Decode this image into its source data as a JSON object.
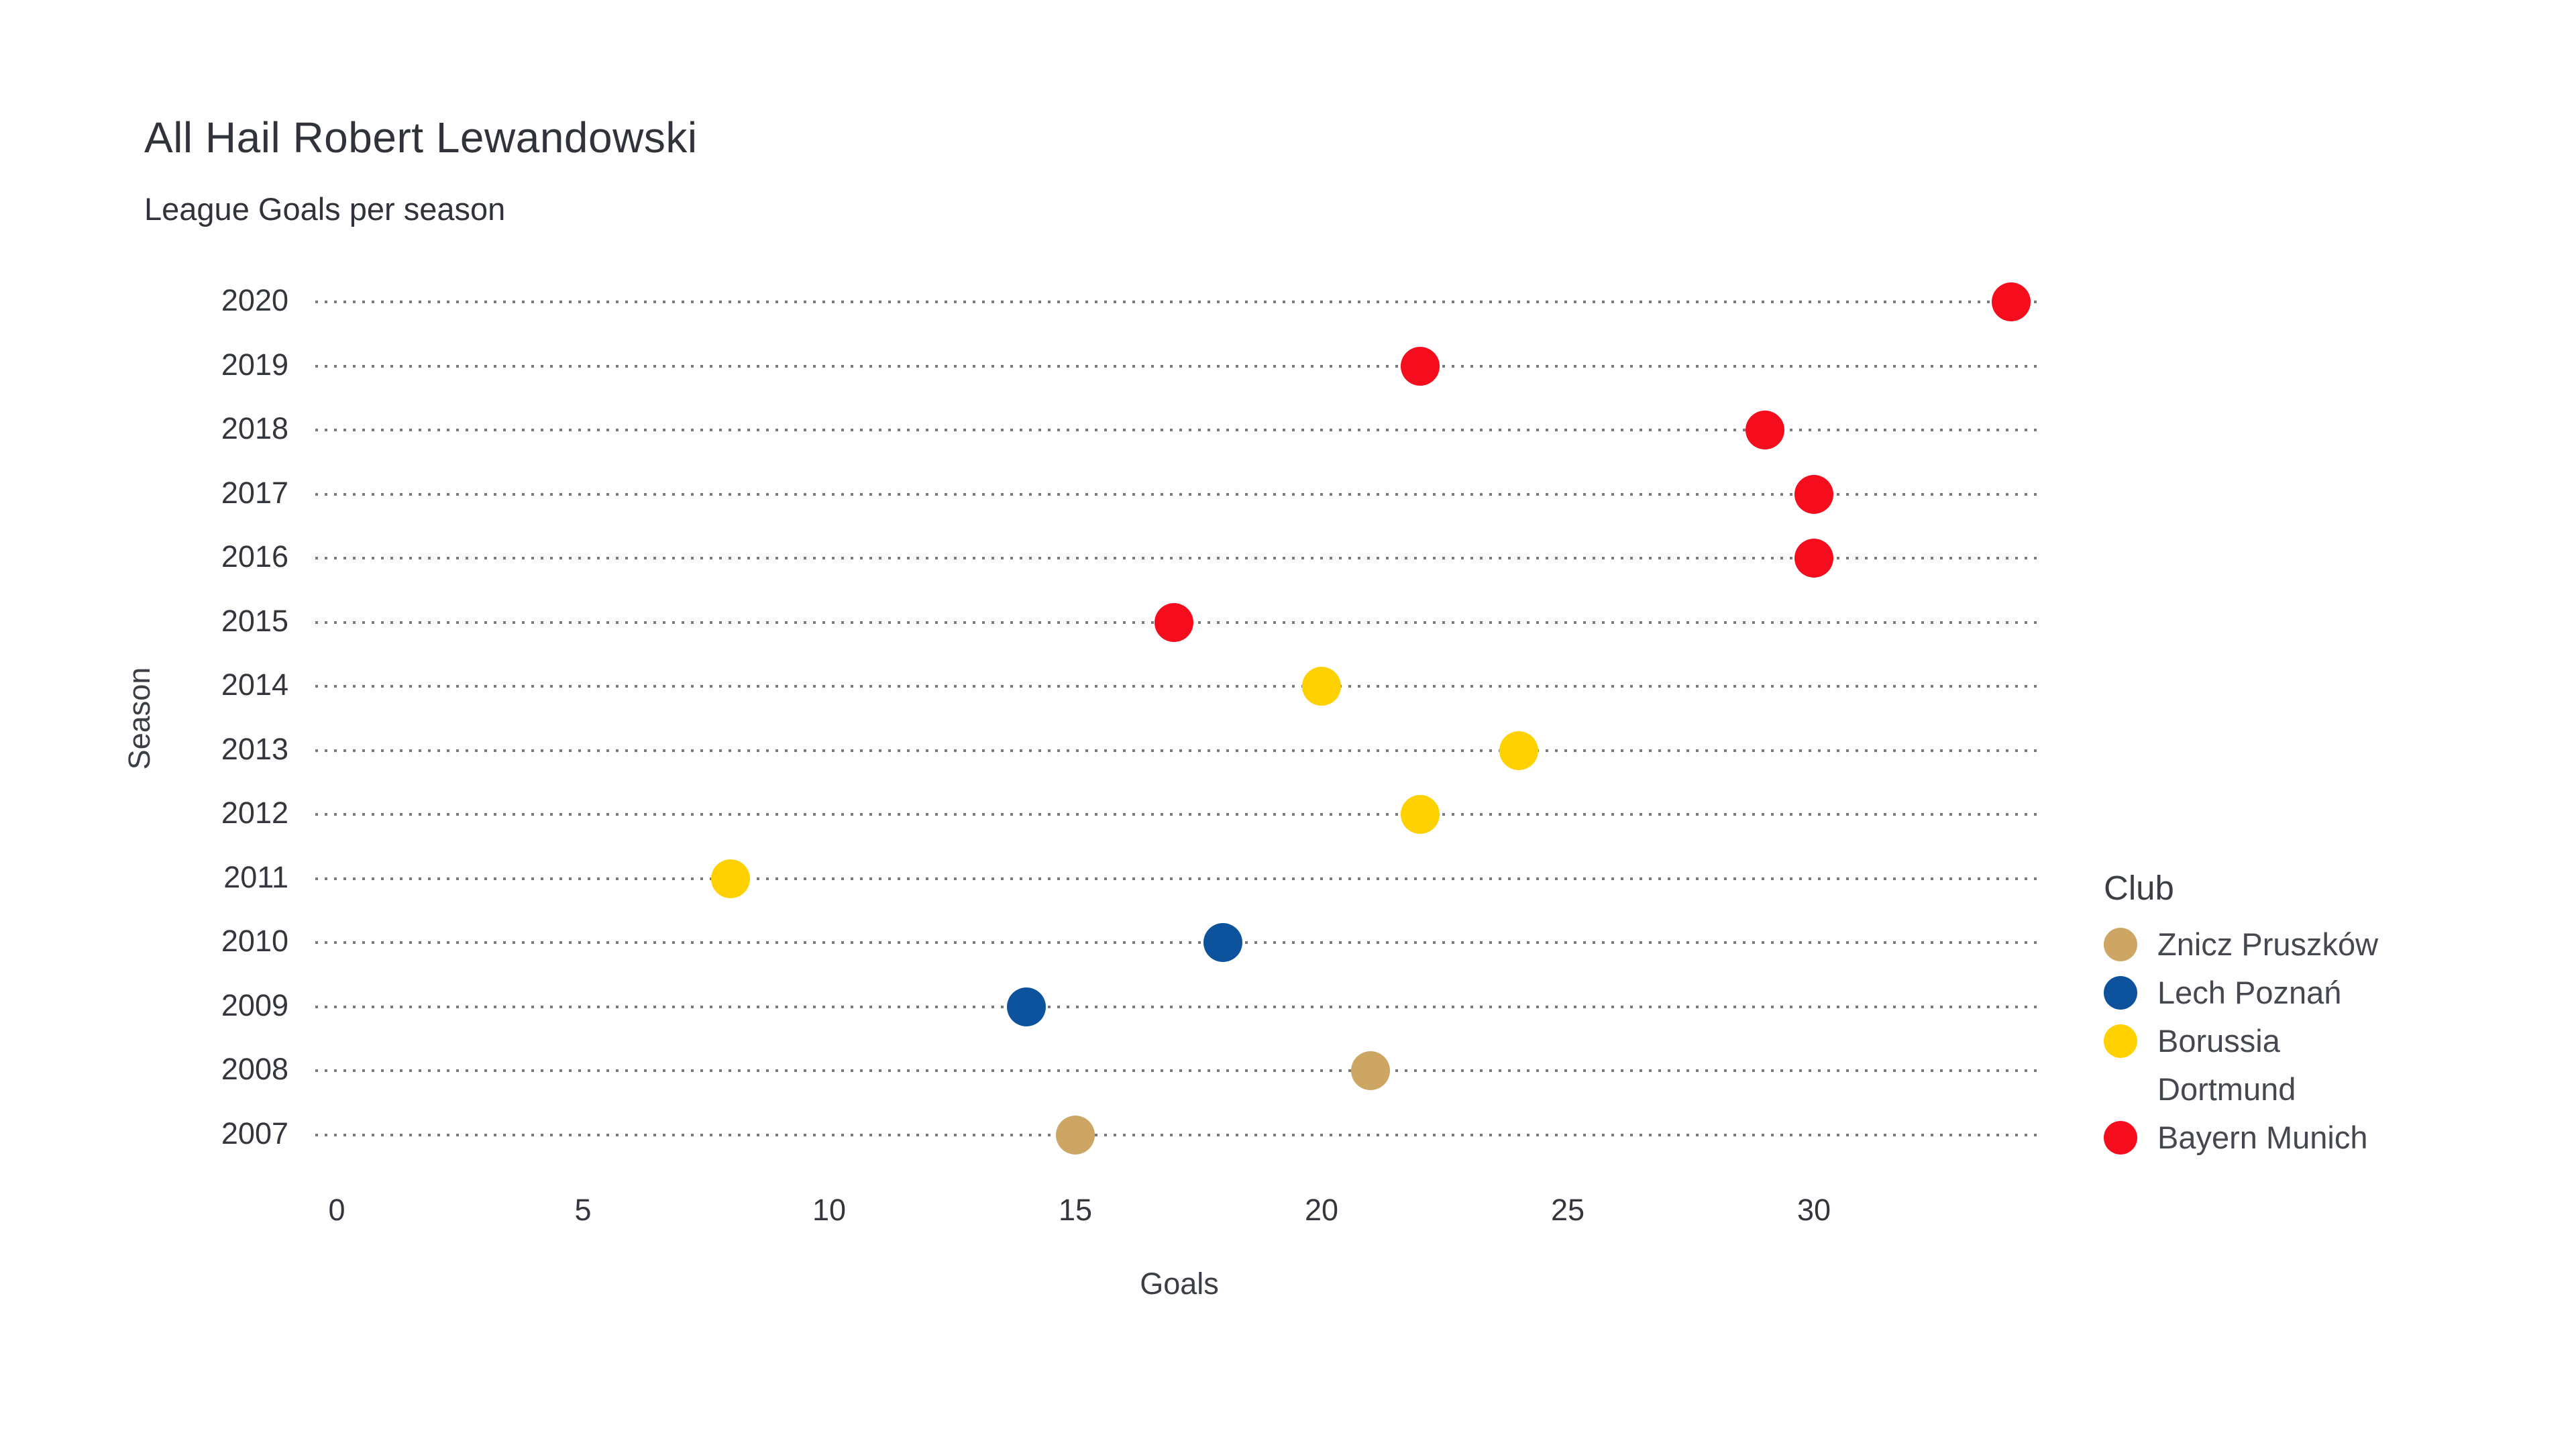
{
  "header": {
    "title": "All Hail Robert Lewandowski",
    "subtitle": "League Goals per season"
  },
  "axes": {
    "x": {
      "label": "Goals",
      "ticks": [
        0,
        5,
        10,
        15,
        20,
        25,
        30
      ]
    },
    "y": {
      "label": "Season"
    }
  },
  "legend": {
    "title": "Club"
  },
  "colors": {
    "znicz_pruszkow": "#CDA663",
    "lech_poznan": "#0D529D",
    "borussia_dortmund": "#FFD100",
    "bayern_munich": "#F50D1D",
    "gridline": "#4F4F4F",
    "text": "#33363C",
    "background": "#FFFFFF"
  },
  "chart_data": {
    "type": "scatter",
    "title": "All Hail Robert Lewandowski",
    "subtitle": "League Goals per season",
    "xlabel": "Goals",
    "ylabel": "Season",
    "xlim": [
      0,
      34.7
    ],
    "x_ticks": [
      0,
      5,
      10,
      15,
      20,
      25,
      30
    ],
    "y_categories": [
      2020,
      2019,
      2018,
      2017,
      2016,
      2015,
      2014,
      2013,
      2012,
      2011,
      2010,
      2009,
      2008,
      2007
    ],
    "grid": "horizontal-dotted",
    "legend_position": "right",
    "legend_title": "Club",
    "series": [
      {
        "name": "Znicz Pruszków",
        "color": "#CDA663",
        "points": [
          {
            "season": 2007,
            "goals": 15
          },
          {
            "season": 2008,
            "goals": 21
          }
        ]
      },
      {
        "name": "Lech Poznań",
        "color": "#0D529D",
        "points": [
          {
            "season": 2009,
            "goals": 14
          },
          {
            "season": 2010,
            "goals": 18
          }
        ]
      },
      {
        "name": "Borussia Dortmund",
        "color": "#FFD100",
        "points": [
          {
            "season": 2011,
            "goals": 8
          },
          {
            "season": 2012,
            "goals": 22
          },
          {
            "season": 2013,
            "goals": 24
          },
          {
            "season": 2014,
            "goals": 20
          }
        ]
      },
      {
        "name": "Bayern Munich",
        "color": "#F50D1D",
        "points": [
          {
            "season": 2015,
            "goals": 17
          },
          {
            "season": 2016,
            "goals": 30
          },
          {
            "season": 2017,
            "goals": 30
          },
          {
            "season": 2018,
            "goals": 29
          },
          {
            "season": 2019,
            "goals": 22
          },
          {
            "season": 2020,
            "goals": 34
          }
        ]
      }
    ]
  }
}
